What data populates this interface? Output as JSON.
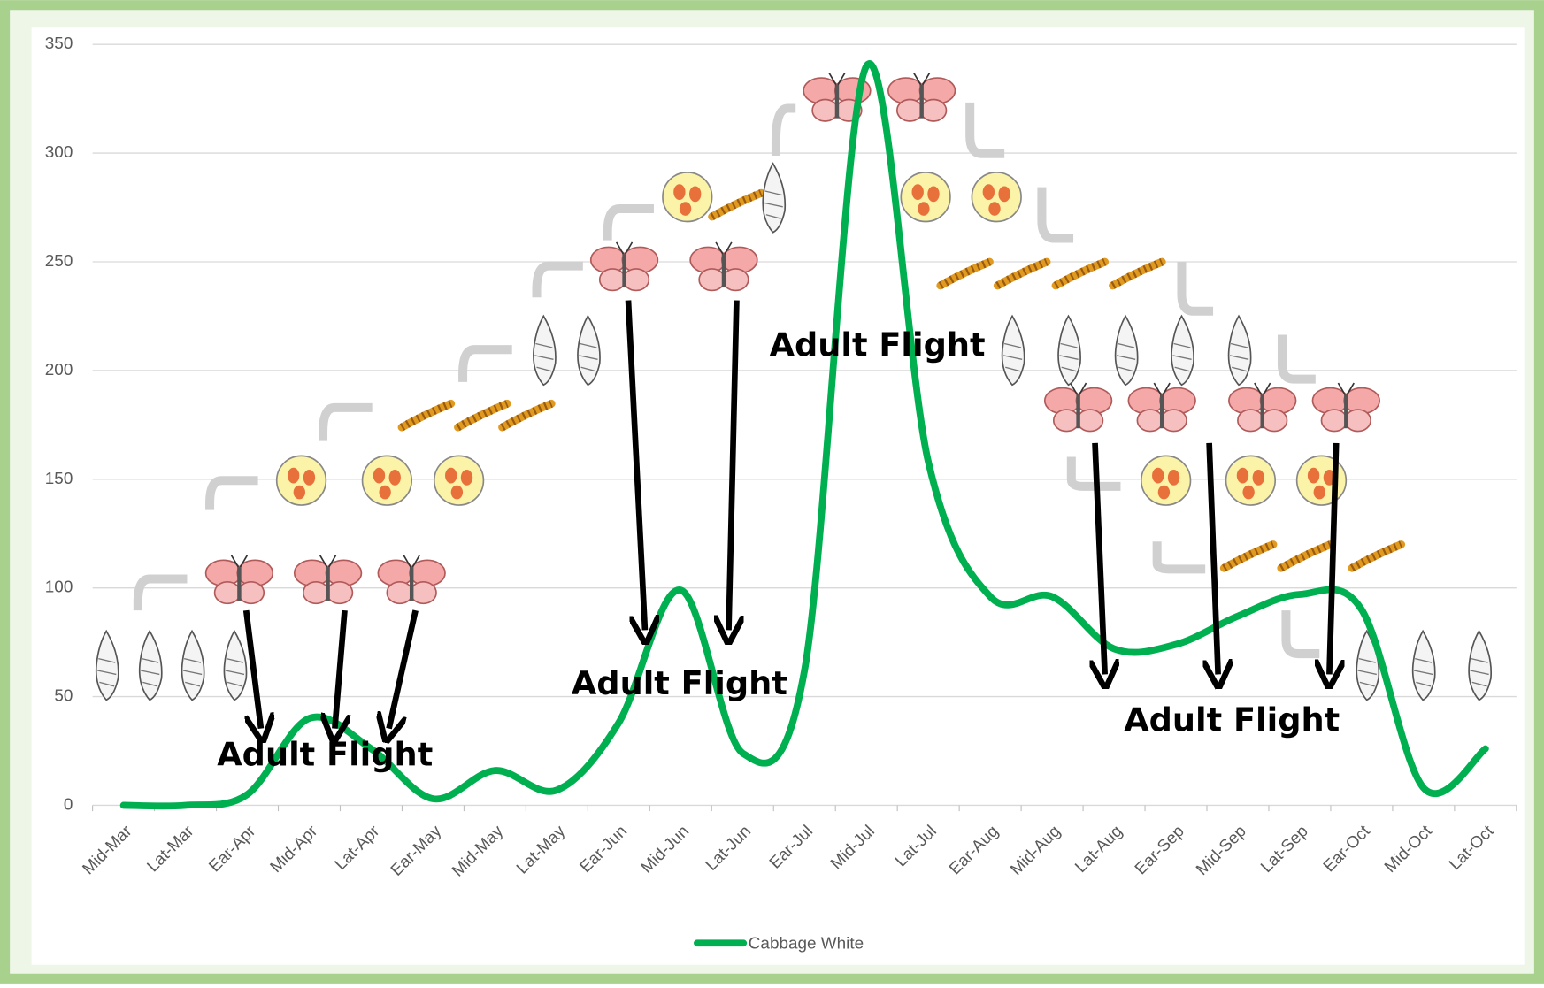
{
  "chart_data": {
    "type": "line",
    "categories": [
      "Mid-Mar",
      "Lat-Mar",
      "Ear-Apr",
      "Mid-Apr",
      "Lat-Apr",
      "Ear-May",
      "Mid-May",
      "Lat-May",
      "Ear-Jun",
      "Mid-Jun",
      "Lat-Jun",
      "Ear-Jul",
      "Mid-Jul",
      "Lat-Jul",
      "Ear-Aug",
      "Mid-Aug",
      "Lat-Aug",
      "Ear-Sep",
      "Mid-Sep",
      "Lat-Sep",
      "Ear-Oct",
      "Mid-Oct",
      "Lat-Oct"
    ],
    "series": [
      {
        "name": "Cabbage White",
        "color": "#00b050",
        "values": [
          0,
          0,
          5,
          40,
          26,
          3,
          16,
          7,
          38,
          99,
          24,
          62,
          340,
          158,
          96,
          96,
          72,
          74,
          87,
          97,
          90,
          8,
          26
        ]
      }
    ],
    "ylim": [
      0,
      350
    ],
    "yticks": [
      0,
      50,
      100,
      150,
      200,
      250,
      300,
      350
    ],
    "grid": true,
    "legend": "bottom",
    "annotations": [
      "Adult Flight",
      "Adult Flight",
      "Adult Flight",
      "Adult Flight"
    ]
  }
}
